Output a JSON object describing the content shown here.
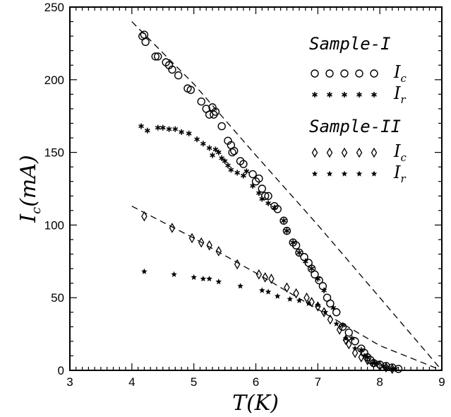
{
  "chart_data": {
    "type": "scatter",
    "xlabel": {
      "main": "T",
      "unit": "(K)"
    },
    "ylabel": {
      "main": "I",
      "sub": "c",
      "unit": "(mA)"
    },
    "xlim": [
      3,
      9
    ],
    "ylim": [
      0,
      250
    ],
    "xticks": [
      "3",
      "4",
      "5",
      "6",
      "7",
      "8",
      "9"
    ],
    "yticks": [
      "0",
      "50",
      "100",
      "150",
      "200",
      "250"
    ],
    "legend": {
      "position": "top-right",
      "groups": [
        {
          "heading": "Sample-I",
          "entries": [
            {
              "marker": "circle",
              "var": "I",
              "sub": "c"
            },
            {
              "marker": "asterisk",
              "var": "I",
              "sub": "r"
            }
          ]
        },
        {
          "heading": "Sample-II",
          "entries": [
            {
              "marker": "diamond",
              "var": "I",
              "sub": "c"
            },
            {
              "marker": "star",
              "var": "I",
              "sub": "r"
            }
          ]
        }
      ]
    },
    "series": [
      {
        "group": "Sample-I",
        "marker": "circle",
        "quantity": "Ic",
        "points": [
          [
            4.17,
            230
          ],
          [
            4.2,
            231
          ],
          [
            4.22,
            226
          ],
          [
            4.38,
            216
          ],
          [
            4.42,
            216
          ],
          [
            4.55,
            212
          ],
          [
            4.6,
            210
          ],
          [
            4.65,
            207
          ],
          [
            4.75,
            203
          ],
          [
            4.9,
            194
          ],
          [
            4.95,
            193
          ],
          [
            5.12,
            185
          ],
          [
            5.2,
            180
          ],
          [
            5.25,
            176
          ],
          [
            5.3,
            181
          ],
          [
            5.32,
            176
          ],
          [
            5.35,
            178
          ],
          [
            5.45,
            168
          ],
          [
            5.55,
            158
          ],
          [
            5.6,
            155
          ],
          [
            5.62,
            150
          ],
          [
            5.65,
            151
          ],
          [
            5.75,
            144
          ],
          [
            5.8,
            142
          ],
          [
            5.95,
            135
          ],
          [
            6.0,
            130
          ],
          [
            6.05,
            132
          ],
          [
            6.1,
            125
          ],
          [
            6.15,
            120
          ],
          [
            6.2,
            120
          ],
          [
            6.3,
            113
          ],
          [
            6.35,
            111
          ],
          [
            6.45,
            103
          ],
          [
            6.5,
            96
          ],
          [
            6.6,
            88
          ],
          [
            6.65,
            86
          ],
          [
            6.7,
            81
          ],
          [
            6.78,
            78
          ],
          [
            6.85,
            74
          ],
          [
            6.9,
            70
          ],
          [
            6.95,
            66
          ],
          [
            7.02,
            62
          ],
          [
            7.08,
            58
          ],
          [
            7.15,
            50
          ],
          [
            7.2,
            46
          ],
          [
            7.3,
            40
          ],
          [
            7.4,
            30
          ],
          [
            7.5,
            26
          ],
          [
            7.6,
            20
          ],
          [
            7.7,
            15
          ],
          [
            7.75,
            12
          ],
          [
            7.8,
            9
          ],
          [
            7.85,
            7
          ],
          [
            7.9,
            5
          ],
          [
            8.0,
            4
          ],
          [
            8.1,
            3
          ],
          [
            8.2,
            2
          ],
          [
            8.3,
            1
          ]
        ]
      },
      {
        "group": "Sample-I",
        "marker": "asterisk",
        "quantity": "Ir",
        "points": [
          [
            4.15,
            168
          ],
          [
            4.25,
            165
          ],
          [
            4.42,
            167
          ],
          [
            4.5,
            167
          ],
          [
            4.6,
            166
          ],
          [
            4.7,
            166
          ],
          [
            4.8,
            164
          ],
          [
            4.92,
            163
          ],
          [
            5.05,
            159
          ],
          [
            5.15,
            156
          ],
          [
            5.25,
            153
          ],
          [
            5.3,
            148
          ],
          [
            5.35,
            152
          ],
          [
            5.4,
            150
          ],
          [
            5.45,
            146
          ],
          [
            5.5,
            144
          ],
          [
            5.55,
            141
          ],
          [
            5.6,
            138
          ],
          [
            5.7,
            136
          ],
          [
            5.8,
            134
          ],
          [
            5.85,
            137
          ],
          [
            5.95,
            127
          ],
          [
            6.05,
            122
          ],
          [
            6.1,
            118
          ],
          [
            6.2,
            115
          ],
          [
            6.3,
            112
          ],
          [
            6.45,
            103
          ],
          [
            6.5,
            96
          ],
          [
            6.6,
            88
          ],
          [
            6.7,
            81
          ],
          [
            6.8,
            75
          ],
          [
            6.9,
            70
          ],
          [
            7.0,
            63
          ],
          [
            7.1,
            55
          ],
          [
            7.25,
            43
          ],
          [
            7.4,
            31
          ],
          [
            7.55,
            22
          ],
          [
            7.7,
            14
          ],
          [
            7.8,
            9
          ],
          [
            7.95,
            5
          ],
          [
            8.1,
            2
          ],
          [
            8.25,
            1
          ]
        ]
      },
      {
        "group": "Sample-II",
        "marker": "diamond",
        "quantity": "Ic",
        "points": [
          [
            4.2,
            106
          ],
          [
            4.65,
            98
          ],
          [
            4.97,
            91
          ],
          [
            5.12,
            88
          ],
          [
            5.25,
            86
          ],
          [
            5.4,
            82
          ],
          [
            5.7,
            73
          ],
          [
            6.05,
            66
          ],
          [
            6.15,
            64
          ],
          [
            6.25,
            63
          ],
          [
            6.5,
            57
          ],
          [
            6.65,
            53
          ],
          [
            6.82,
            50
          ],
          [
            6.9,
            47
          ],
          [
            7.0,
            44
          ],
          [
            7.1,
            40
          ],
          [
            7.2,
            35
          ],
          [
            7.35,
            28
          ],
          [
            7.45,
            21
          ],
          [
            7.5,
            18
          ],
          [
            7.6,
            12
          ],
          [
            7.7,
            9
          ],
          [
            7.8,
            7
          ],
          [
            7.9,
            5
          ],
          [
            8.0,
            3
          ],
          [
            8.1,
            2
          ],
          [
            8.2,
            1
          ]
        ]
      },
      {
        "group": "Sample-II",
        "marker": "star",
        "quantity": "Ir",
        "points": [
          [
            4.2,
            68
          ],
          [
            4.68,
            66
          ],
          [
            5.0,
            64
          ],
          [
            5.15,
            63
          ],
          [
            5.25,
            63
          ],
          [
            5.4,
            61
          ],
          [
            5.75,
            58
          ],
          [
            6.1,
            55
          ],
          [
            6.2,
            54
          ],
          [
            6.35,
            51
          ],
          [
            6.55,
            49
          ],
          [
            6.7,
            48
          ],
          [
            6.85,
            46
          ],
          [
            7.0,
            45
          ],
          [
            7.12,
            40
          ],
          [
            7.3,
            32
          ],
          [
            7.45,
            22
          ],
          [
            7.6,
            15
          ],
          [
            7.75,
            10
          ],
          [
            7.9,
            5
          ],
          [
            8.05,
            3
          ],
          [
            8.2,
            1
          ]
        ]
      }
    ],
    "fit_lines": [
      {
        "style": "dashed",
        "points": [
          [
            4.0,
            240
          ],
          [
            5.0,
            197
          ],
          [
            6.0,
            148
          ],
          [
            7.0,
            100
          ],
          [
            8.0,
            50
          ],
          [
            9.0,
            0
          ]
        ]
      },
      {
        "style": "dashed",
        "points": [
          [
            4.0,
            113
          ],
          [
            5.0,
            91
          ],
          [
            6.0,
            67
          ],
          [
            7.0,
            42
          ],
          [
            8.0,
            17
          ],
          [
            9.0,
            0
          ]
        ]
      }
    ]
  }
}
